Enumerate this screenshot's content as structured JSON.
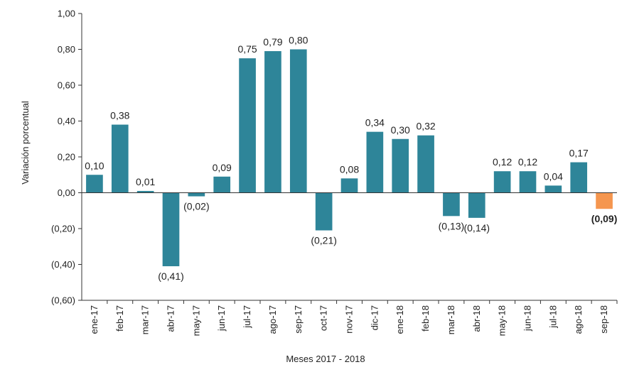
{
  "chart_data": {
    "type": "bar",
    "title": "",
    "xlabel": "Meses 2017 - 2018",
    "ylabel": "Variación porcentual",
    "ylim": [
      -0.6,
      1.0
    ],
    "ytick_values": [
      1.0,
      0.8,
      0.6,
      0.4,
      0.2,
      0.0,
      -0.2,
      -0.4,
      -0.6
    ],
    "ytick_labels": [
      "1,00",
      "0,80",
      "0,60",
      "0,40",
      "0,20",
      "0,00",
      "(0,20)",
      "(0,40)",
      "(0,60)"
    ],
    "grid": false,
    "categories": [
      "ene-17",
      "feb-17",
      "mar-17",
      "abr-17",
      "may-17",
      "jun-17",
      "jul-17",
      "ago-17",
      "sep-17",
      "oct-17",
      "nov-17",
      "dic-17",
      "ene-18",
      "feb-18",
      "mar-18",
      "abr-18",
      "may-18",
      "jun-18",
      "jul-18",
      "ago-18",
      "sep-18"
    ],
    "values": [
      0.1,
      0.38,
      0.01,
      -0.41,
      -0.02,
      0.09,
      0.75,
      0.79,
      0.8,
      -0.21,
      0.08,
      0.34,
      0.3,
      0.32,
      -0.13,
      -0.14,
      0.12,
      0.12,
      0.04,
      0.17,
      -0.09
    ],
    "value_labels": [
      "0,10",
      "0,38",
      "0,01",
      "(0,41)",
      "(0,02)",
      "0,09",
      "0,75",
      "0,79",
      "0,80",
      "(0,21)",
      "0,08",
      "0,34",
      "0,30",
      "0,32",
      "(0,13)",
      "(0,14)",
      "0,12",
      "0,12",
      "0,04",
      "0,17",
      "(0,09)"
    ],
    "bar_color": "#2e8599",
    "highlight_index": 20,
    "highlight_color": "#f5964f"
  }
}
